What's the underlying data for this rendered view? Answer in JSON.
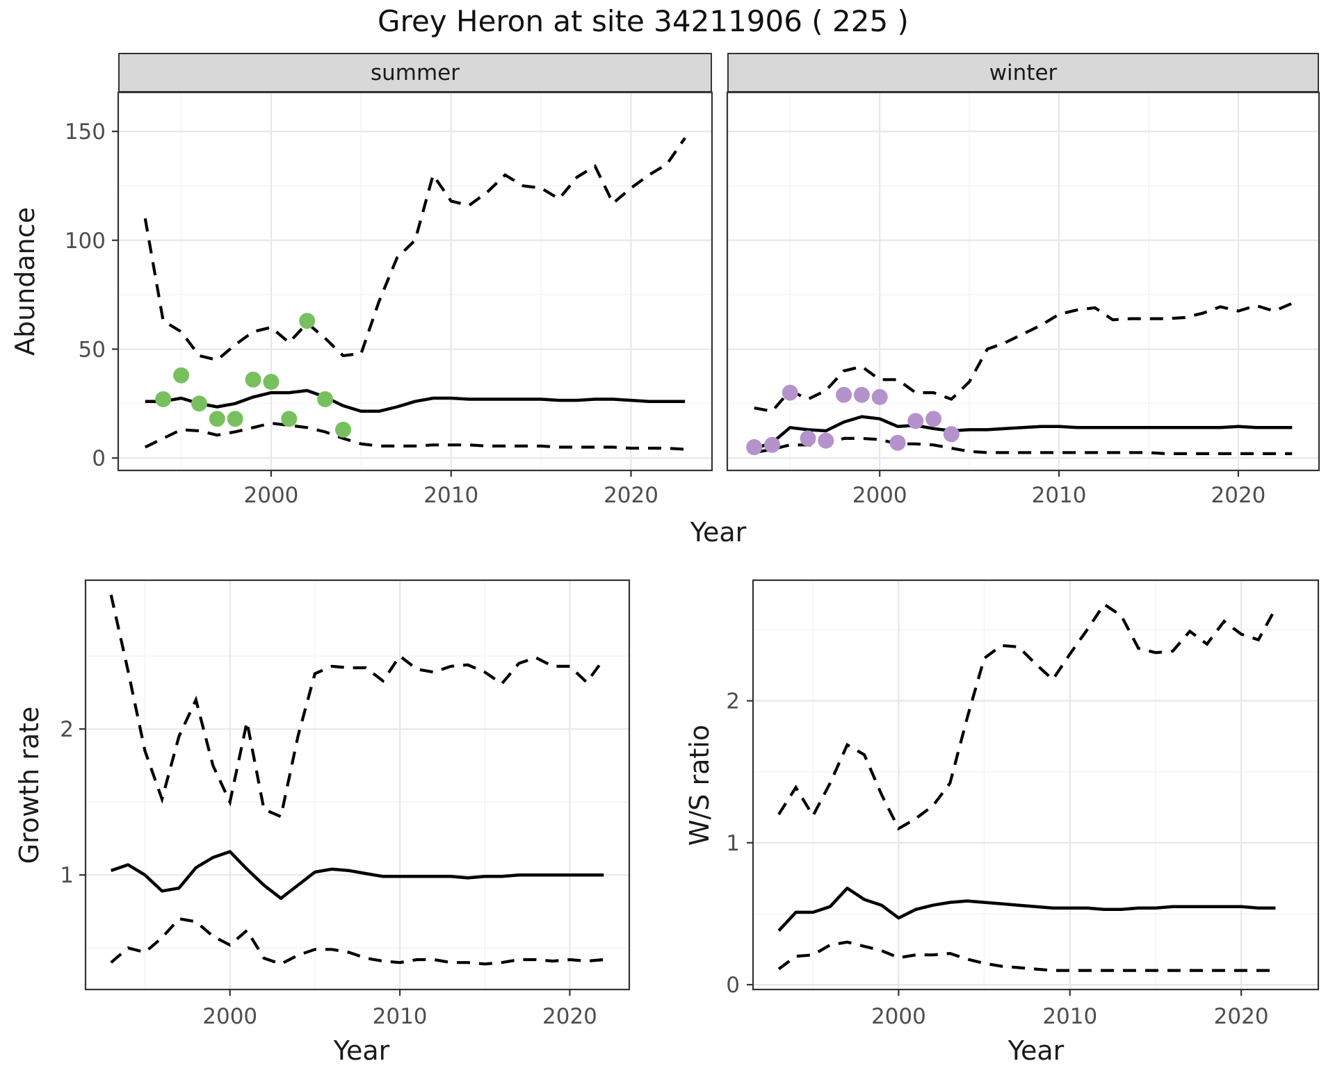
{
  "title": "Grey Heron at site 34211906 ( 225 )",
  "colors": {
    "observed_summer": "#78c05f",
    "observed_winter": "#b492cc",
    "median_line": "#000000",
    "ci_line": "#000000",
    "strip_background": "#d8d8d8",
    "strip_text": "#1a1a1a",
    "panel_border": "#333333",
    "grid_major": "#e7e7e7",
    "grid_minor": "#f3f3f3",
    "tick_text": "#4d4d4d",
    "axis_text": "#1a1a1a"
  },
  "chart_data": [
    {
      "panel": "abundance-summer",
      "type": "line",
      "facet_label": "summer",
      "xlabel": "Year",
      "ylabel": "Abundance",
      "xlim": [
        1991.5,
        2024.5
      ],
      "ylim": [
        -5.7,
        167.9
      ],
      "xticks": [
        2000,
        2010,
        2020
      ],
      "xminor": [
        1995,
        2005,
        2015
      ],
      "yticks": [
        0,
        50,
        100,
        150
      ],
      "yminor": [
        25,
        75,
        125
      ],
      "years": [
        1993,
        1994,
        1995,
        1996,
        1997,
        1998,
        1999,
        2000,
        2001,
        2002,
        2003,
        2004,
        2005,
        2006,
        2007,
        2008,
        2009,
        2010,
        2011,
        2012,
        2013,
        2014,
        2015,
        2016,
        2017,
        2018,
        2019,
        2020,
        2021,
        2022,
        2023
      ],
      "series": [
        {
          "name": "median",
          "style": "solid",
          "values": [
            26,
            26,
            27.5,
            25,
            23.5,
            25,
            28,
            30,
            30,
            31,
            28,
            24,
            21.5,
            21.5,
            23.5,
            26,
            27.5,
            27.5,
            27,
            27,
            27,
            27,
            27,
            26.5,
            26.5,
            27,
            27,
            26.5,
            26,
            26,
            26
          ]
        },
        {
          "name": "lower_ci",
          "style": "dashed",
          "values": [
            5,
            9,
            13,
            12.5,
            10.5,
            12,
            14,
            16,
            15,
            14,
            12,
            9,
            6.5,
            5.5,
            5.5,
            5.5,
            6,
            6,
            6,
            5.5,
            5.5,
            5.5,
            5.5,
            5,
            5,
            5,
            5,
            4.5,
            4.5,
            4.5,
            4
          ]
        },
        {
          "name": "upper_ci",
          "style": "dashed",
          "values": [
            110,
            63,
            58,
            47,
            45,
            52,
            58,
            60,
            53,
            62,
            55,
            47,
            48,
            72,
            92,
            100,
            130,
            118,
            116,
            122,
            130,
            125,
            124,
            119,
            129,
            134,
            117,
            124,
            130,
            135,
            147
          ]
        }
      ],
      "observed_points": {
        "color_key": "observed_summer",
        "years": [
          1994,
          1995,
          1996,
          1997,
          1998,
          1999,
          2000,
          2001,
          2002,
          2003,
          2004
        ],
        "values": [
          27,
          38,
          25,
          18,
          18,
          36,
          35,
          18,
          63,
          27,
          13
        ]
      }
    },
    {
      "panel": "abundance-winter",
      "type": "line",
      "facet_label": "winter",
      "xlabel": "Year",
      "ylabel": "Abundance",
      "xlim": [
        1991.5,
        2024.5
      ],
      "ylim": [
        -5.7,
        167.9
      ],
      "xticks": [
        2000,
        2010,
        2020
      ],
      "xminor": [
        1995,
        2005,
        2015
      ],
      "yticks": [
        0,
        50,
        100,
        150
      ],
      "yminor": [
        25,
        75,
        125
      ],
      "years": [
        1993,
        1994,
        1995,
        1996,
        1997,
        1998,
        1999,
        2000,
        2001,
        2002,
        2003,
        2004,
        2005,
        2006,
        2007,
        2008,
        2009,
        2010,
        2011,
        2012,
        2013,
        2014,
        2015,
        2016,
        2017,
        2018,
        2019,
        2020,
        2021,
        2022,
        2023
      ],
      "series": [
        {
          "name": "median",
          "style": "solid",
          "values": [
            4.3,
            7,
            14,
            13,
            12.5,
            16.5,
            19,
            18,
            14.5,
            15,
            13.5,
            12.5,
            13,
            13,
            13.5,
            14,
            14.5,
            14.5,
            14,
            14,
            14,
            14,
            14,
            14,
            14,
            14,
            14,
            14.5,
            14,
            14,
            14
          ]
        },
        {
          "name": "lower_ci",
          "style": "dashed",
          "values": [
            2.5,
            4,
            6,
            6,
            6,
            9,
            9,
            8.5,
            6.5,
            6.5,
            6,
            4.5,
            3,
            2.5,
            2.5,
            2.5,
            2.5,
            2.5,
            2.5,
            2.5,
            2.5,
            2.5,
            2.5,
            2,
            2,
            2,
            2,
            2,
            2,
            2,
            2
          ]
        },
        {
          "name": "upper_ci",
          "style": "dashed",
          "values": [
            23,
            21.5,
            31,
            27,
            31,
            40,
            42,
            36,
            36,
            30,
            30,
            27,
            35,
            50,
            53,
            57,
            61,
            66,
            68,
            69,
            63.5,
            64,
            64,
            64,
            64.5,
            66.5,
            69.5,
            67.5,
            70,
            67.5,
            71
          ]
        }
      ],
      "observed_points": {
        "color_key": "observed_winter",
        "years": [
          1993,
          1994,
          1995,
          1996,
          1997,
          1998,
          1999,
          2000,
          2001,
          2002,
          2003,
          2004
        ],
        "values": [
          5,
          6,
          30,
          9,
          8,
          29,
          29,
          28,
          7,
          17,
          18,
          11
        ]
      }
    },
    {
      "panel": "growth-rate",
      "type": "line",
      "facet_label": "",
      "xlabel": "Year",
      "ylabel": "Growth rate",
      "xlim": [
        1991.5,
        2023.5
      ],
      "ylim": [
        0.215,
        3.02
      ],
      "xticks": [
        2000,
        2010,
        2020
      ],
      "xminor": [
        1995,
        2005,
        2015
      ],
      "yticks": [
        1,
        2
      ],
      "yminor": [
        0.5,
        1.5,
        2.5
      ],
      "years": [
        1993,
        1994,
        1995,
        1996,
        1997,
        1998,
        1999,
        2000,
        2001,
        2002,
        2003,
        2004,
        2005,
        2006,
        2007,
        2008,
        2009,
        2010,
        2011,
        2012,
        2013,
        2014,
        2015,
        2016,
        2017,
        2018,
        2019,
        2020,
        2021,
        2022
      ],
      "series": [
        {
          "name": "median",
          "style": "solid",
          "values": [
            1.03,
            1.07,
            1.0,
            0.89,
            0.91,
            1.05,
            1.12,
            1.16,
            1.04,
            0.93,
            0.84,
            0.93,
            1.02,
            1.04,
            1.03,
            1.01,
            0.99,
            0.99,
            0.99,
            0.99,
            0.99,
            0.98,
            0.99,
            0.99,
            1.0,
            1.0,
            1.0,
            1.0,
            1.0,
            1.0
          ]
        },
        {
          "name": "lower_ci",
          "style": "dashed",
          "values": [
            0.4,
            0.5,
            0.47,
            0.57,
            0.7,
            0.68,
            0.58,
            0.52,
            0.62,
            0.43,
            0.39,
            0.45,
            0.49,
            0.49,
            0.47,
            0.43,
            0.41,
            0.4,
            0.42,
            0.42,
            0.4,
            0.4,
            0.39,
            0.4,
            0.42,
            0.42,
            0.41,
            0.42,
            0.41,
            0.42
          ]
        },
        {
          "name": "upper_ci",
          "style": "dashed",
          "values": [
            2.92,
            2.4,
            1.85,
            1.52,
            1.95,
            2.2,
            1.75,
            1.5,
            2.05,
            1.45,
            1.4,
            1.95,
            2.38,
            2.43,
            2.42,
            2.42,
            2.33,
            2.5,
            2.41,
            2.39,
            2.43,
            2.44,
            2.39,
            2.31,
            2.45,
            2.49,
            2.43,
            2.43,
            2.32,
            2.48
          ]
        }
      ],
      "observed_points": {
        "color_key": "",
        "years": [],
        "values": []
      }
    },
    {
      "panel": "ws-ratio",
      "type": "line",
      "facet_label": "",
      "xlabel": "Year",
      "ylabel": "W/S ratio",
      "xlim": [
        1991.5,
        2024.5
      ],
      "ylim": [
        -0.034,
        2.85
      ],
      "xticks": [
        2000,
        2010,
        2020
      ],
      "xminor": [
        1995,
        2005,
        2015
      ],
      "yticks": [
        0,
        1,
        2
      ],
      "yminor": [
        0.5,
        1.5,
        2.5
      ],
      "years": [
        1993,
        1994,
        1995,
        1996,
        1997,
        1998,
        1999,
        2000,
        2001,
        2002,
        2003,
        2004,
        2005,
        2006,
        2007,
        2008,
        2009,
        2010,
        2011,
        2012,
        2013,
        2014,
        2015,
        2016,
        2017,
        2018,
        2019,
        2020,
        2021,
        2022
      ],
      "series": [
        {
          "name": "median",
          "style": "solid",
          "values": [
            0.38,
            0.51,
            0.51,
            0.55,
            0.68,
            0.6,
            0.56,
            0.47,
            0.53,
            0.56,
            0.58,
            0.59,
            0.58,
            0.57,
            0.56,
            0.55,
            0.54,
            0.54,
            0.54,
            0.53,
            0.53,
            0.54,
            0.54,
            0.55,
            0.55,
            0.55,
            0.55,
            0.55,
            0.54,
            0.54
          ]
        },
        {
          "name": "lower_ci",
          "style": "dashed",
          "values": [
            0.11,
            0.2,
            0.21,
            0.28,
            0.3,
            0.27,
            0.24,
            0.19,
            0.21,
            0.21,
            0.22,
            0.18,
            0.15,
            0.13,
            0.12,
            0.11,
            0.1,
            0.1,
            0.1,
            0.1,
            0.1,
            0.1,
            0.1,
            0.1,
            0.1,
            0.1,
            0.1,
            0.1,
            0.1,
            0.1
          ]
        },
        {
          "name": "upper_ci",
          "style": "dashed",
          "values": [
            1.2,
            1.39,
            1.19,
            1.42,
            1.69,
            1.62,
            1.34,
            1.1,
            1.17,
            1.26,
            1.42,
            1.88,
            2.3,
            2.39,
            2.38,
            2.26,
            2.15,
            2.33,
            2.5,
            2.68,
            2.6,
            2.37,
            2.34,
            2.35,
            2.49,
            2.4,
            2.56,
            2.47,
            2.43,
            2.65
          ]
        }
      ],
      "observed_points": {
        "color_key": "",
        "years": [],
        "values": []
      }
    }
  ]
}
